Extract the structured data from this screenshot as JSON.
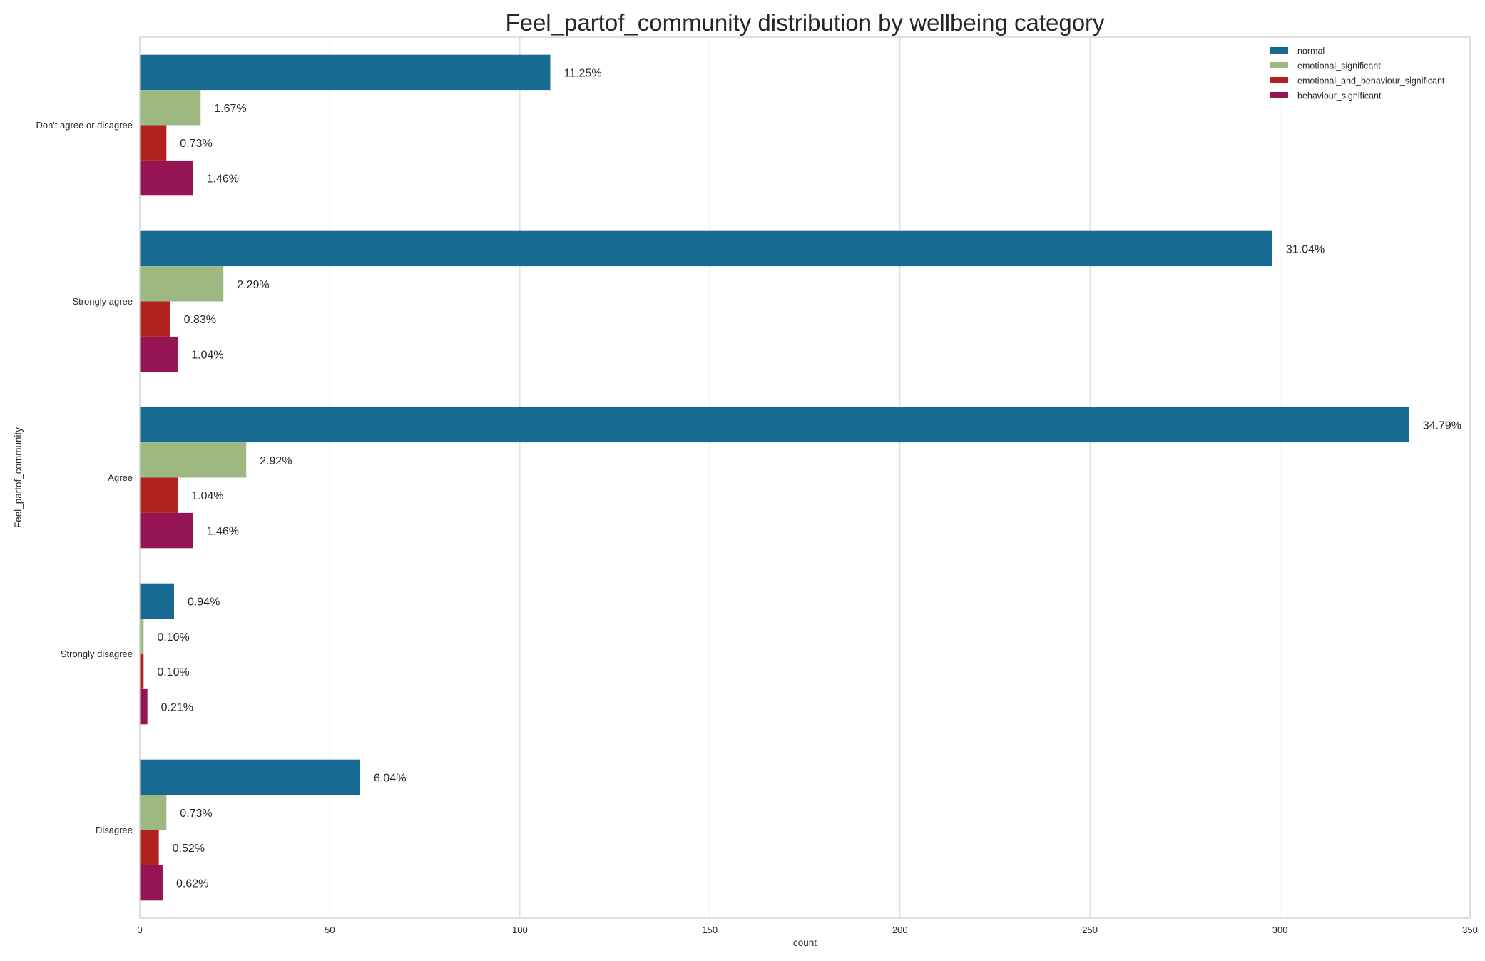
{
  "chart_data": {
    "type": "bar",
    "orientation": "horizontal",
    "title": "Feel_partof_community distribution by wellbeing category",
    "xlabel": "count",
    "ylabel": "Feel_partof_community",
    "xlim": [
      0,
      350
    ],
    "xticks": [
      0,
      50,
      100,
      150,
      200,
      250,
      300,
      350
    ],
    "grid": "vertical",
    "legend_position": "top-right",
    "categories": [
      "Don't agree or disagree",
      "Strongly agree",
      "Agree",
      "Strongly disagree",
      "Disagree"
    ],
    "series": [
      {
        "name": "normal",
        "color": "#176a91",
        "values": [
          108,
          298,
          334,
          9,
          58
        ],
        "labels": [
          "11.25%",
          "31.04%",
          "34.79%",
          "0.94%",
          "6.04%"
        ]
      },
      {
        "name": "emotional_significant",
        "color": "#9db981",
        "values": [
          16,
          22,
          28,
          1,
          7
        ],
        "labels": [
          "1.67%",
          "2.29%",
          "2.92%",
          "0.10%",
          "0.73%"
        ]
      },
      {
        "name": "emotional_and_behaviour_significant",
        "color": "#b22320",
        "values": [
          7,
          8,
          10,
          1,
          5
        ],
        "labels": [
          "0.73%",
          "0.83%",
          "1.04%",
          "0.10%",
          "0.52%"
        ]
      },
      {
        "name": "behaviour_significant",
        "color": "#951554",
        "values": [
          14,
          10,
          14,
          2,
          6
        ],
        "labels": [
          "1.46%",
          "1.04%",
          "1.46%",
          "0.21%",
          "0.62%"
        ]
      }
    ]
  }
}
